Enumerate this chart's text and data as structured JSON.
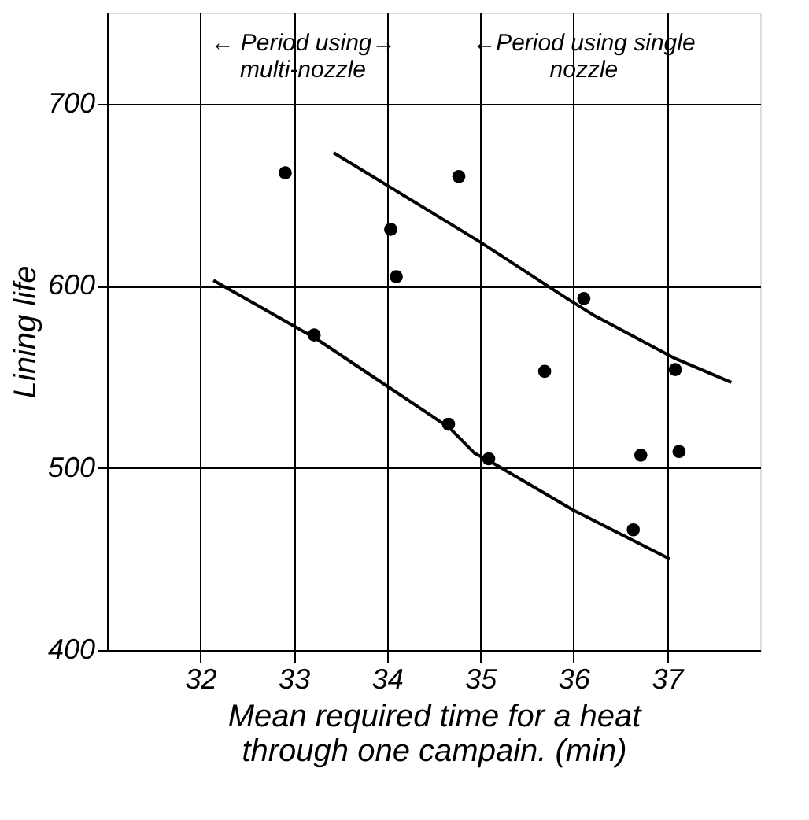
{
  "chart_data": {
    "type": "scatter",
    "xlabel": "Mean required time for a heat\nthrough one campain. (min)",
    "ylabel": "Lining life",
    "xlim": [
      31,
      38
    ],
    "ylim": [
      400,
      750
    ],
    "xticks": [
      32,
      33,
      34,
      35,
      36,
      37
    ],
    "yticks": [
      400,
      500,
      600,
      700
    ],
    "grid": true,
    "series": [
      {
        "marker": "circle",
        "color": "#000000",
        "x": [
          32.91,
          34.04,
          34.1,
          33.22,
          34.66,
          35.09,
          36.11,
          35.69,
          37.09,
          36.72,
          37.13,
          36.64,
          34.77
        ],
        "values": [
          662,
          631,
          605,
          573,
          524,
          505,
          593,
          553,
          554,
          507,
          509,
          466,
          660
        ]
      },
      {
        "type": "line",
        "color": "#000000",
        "x": [
          33.43,
          35.0,
          35.93,
          36.21,
          37.09,
          37.69
        ],
        "values": [
          673,
          624,
          593,
          584,
          560,
          547
        ]
      },
      {
        "type": "line",
        "color": "#000000",
        "x": [
          32.14,
          33.24,
          34.67,
          34.94,
          35.16,
          35.99,
          37.03
        ],
        "values": [
          603,
          571,
          522,
          508,
          502,
          477,
          450
        ]
      }
    ],
    "annotations": [
      "← Period using→\nmulti-nozzle",
      "←Period using single\nnozzle"
    ]
  }
}
